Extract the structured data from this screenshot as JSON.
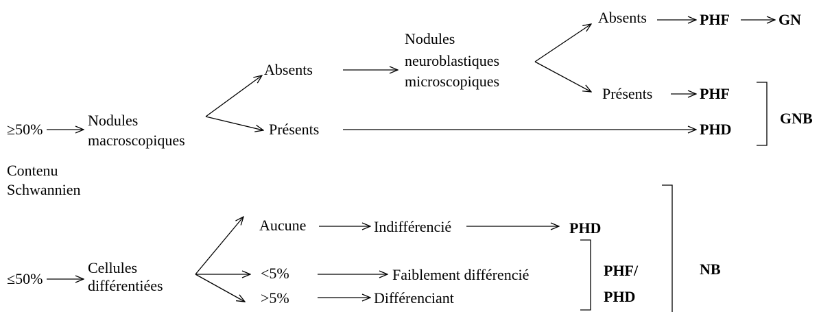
{
  "nodes": [
    {
      "label": "≥50%"
    },
    {
      "label": "Nodules"
    },
    {
      "label": "macroscopiques"
    },
    {
      "label": "Absents"
    },
    {
      "label": "Présents"
    },
    {
      "label": "Nodules"
    },
    {
      "label": "neuroblastiques"
    },
    {
      "label": "microscopiques"
    },
    {
      "label": "Absents"
    },
    {
      "label": "Présents"
    },
    {
      "label": "PHF"
    },
    {
      "label": "GN"
    },
    {
      "label": "PHF"
    },
    {
      "label": "PHD"
    },
    {
      "label": "GNB"
    },
    {
      "label": "Contenu"
    },
    {
      "label": "Schwannien"
    },
    {
      "label": "≤50%"
    },
    {
      "label": "Cellules"
    },
    {
      "label": "différentiées"
    },
    {
      "label": "Aucune"
    },
    {
      "label": "<5%"
    },
    {
      "label": ">5%"
    },
    {
      "label": "Indifférencié"
    },
    {
      "label": "Faiblement différencié"
    },
    {
      "label": "Différenciant"
    },
    {
      "label": "PHD"
    },
    {
      "label": "PHF/"
    },
    {
      "label": "PHD"
    },
    {
      "label": "NB"
    }
  ]
}
